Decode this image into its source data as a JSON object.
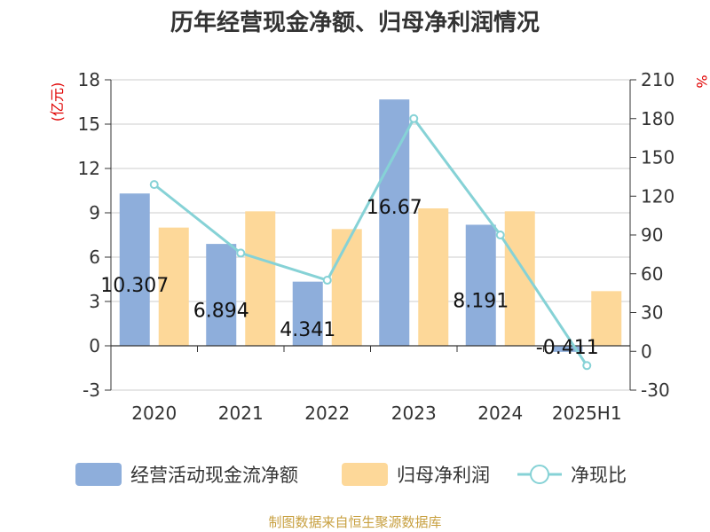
{
  "chart_data": {
    "type": "bar",
    "title": "历年经营现金净额、归母净利润情况",
    "categories": [
      "2020",
      "2021",
      "2022",
      "2023",
      "2024",
      "2025H1"
    ],
    "left_unit": "(亿元)",
    "right_unit": "%",
    "ylim": [
      -3,
      18
    ],
    "yticks": [
      "18",
      "15",
      "12",
      "9",
      "6",
      "3",
      "0",
      "-3"
    ],
    "y2lim": [
      -30,
      210
    ],
    "y2ticks": [
      "210",
      "180",
      "150",
      "120",
      "90",
      "60",
      "30",
      "0",
      "-30"
    ],
    "series": [
      {
        "name": "经营活动现金流净额",
        "type": "bar",
        "axis": "left",
        "color": "#8eaedb",
        "values": [
          10.307,
          6.894,
          4.341,
          16.67,
          8.191,
          -0.411
        ],
        "labels": [
          "10.307",
          "6.894",
          "4.341",
          "16.67",
          "8.191",
          "-0.411"
        ]
      },
      {
        "name": "归母净利润",
        "type": "bar",
        "axis": "left",
        "color": "#fdd899",
        "values": [
          8.0,
          9.1,
          7.9,
          9.3,
          9.1,
          3.7
        ]
      },
      {
        "name": "净现比",
        "type": "line",
        "axis": "right",
        "color": "#86d2d6",
        "values": [
          129,
          76,
          55,
          180,
          90,
          -11
        ]
      }
    ],
    "source": "制图数据来自恒生聚源数据库"
  }
}
